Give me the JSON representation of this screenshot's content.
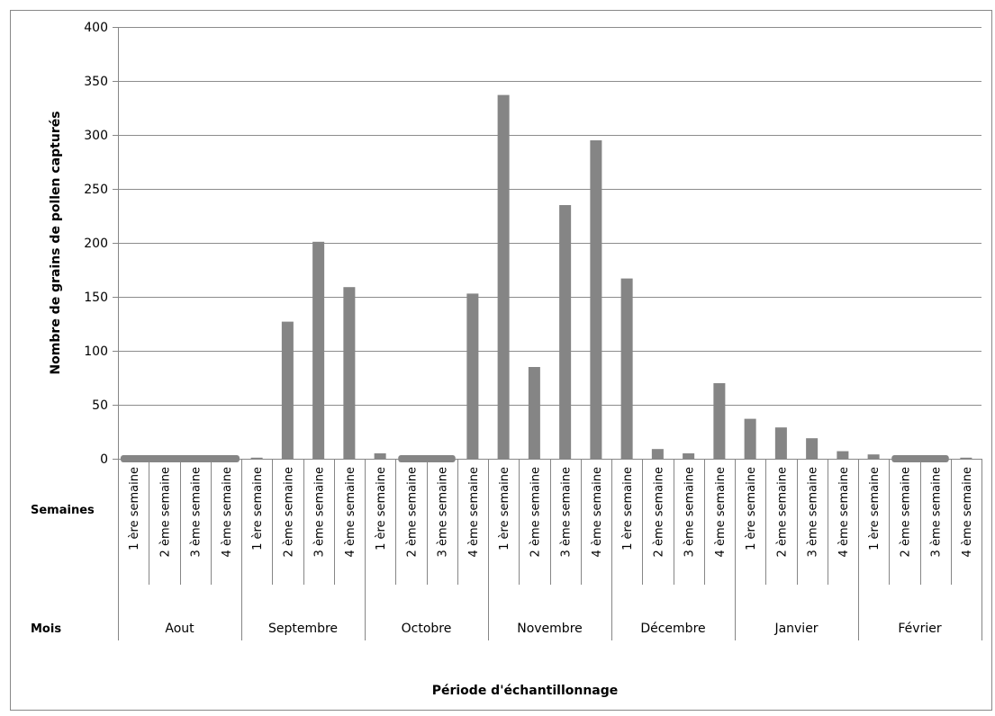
{
  "chart_data": {
    "type": "bar",
    "xlabel": "Période d'échantillonnage",
    "ylabel": "Nombre de grains de pollen capturés",
    "ylim": [
      0,
      400
    ],
    "yticks": [
      0,
      50,
      100,
      150,
      200,
      250,
      300,
      350,
      400
    ],
    "grid": true,
    "legend": "none",
    "row_labels": {
      "weeks": "Semaines",
      "months": "Mois"
    },
    "months": [
      "Aout",
      "Septembre",
      "Octobre",
      "Novembre",
      "Décembre",
      "Janvier",
      "Février"
    ],
    "week_labels": [
      "1 ère semaine",
      "2 ème semaine",
      "3 ème semaine",
      "4 ème semaine"
    ],
    "categories": [
      "Aout 1 ère semaine",
      "Aout 2 ème semaine",
      "Aout 3 ème semaine",
      "Aout 4 ème semaine",
      "Septembre 1 ère semaine",
      "Septembre 2 ème semaine",
      "Septembre 3 ème semaine",
      "Septembre 4 ème semaine",
      "Octobre 1 ère semaine",
      "Octobre 2 ème semaine",
      "Octobre 3 ème semaine",
      "Octobre 4 ème semaine",
      "Novembre 1 ère semaine",
      "Novembre 2 ème semaine",
      "Novembre 3 ème semaine",
      "Novembre 4 ème semaine",
      "Décembre 1 ère semaine",
      "Décembre 2 ème semaine",
      "Décembre 3 ème semaine",
      "Décembre 4 ème semaine",
      "Janvier 1 ère semaine",
      "Janvier 2 ème semaine",
      "Janvier 3 ème semaine",
      "Janvier 4 ème semaine",
      "Février 1 ère semaine",
      "Février 2 ème semaine",
      "Février 3 ème semaine",
      "Février 4 ème semaine"
    ],
    "values": [
      0,
      0,
      0,
      0,
      1,
      127,
      201,
      159,
      5,
      0,
      0,
      153,
      337,
      85,
      235,
      295,
      167,
      9,
      5,
      70,
      37,
      29,
      19,
      7,
      4,
      0,
      0,
      1
    ],
    "missing_markers": [
      [
        0,
        3
      ],
      [
        9,
        10
      ],
      [
        25,
        26
      ]
    ],
    "colors": {
      "bar": "#858585",
      "grid": "#8c8c8c",
      "axis": "#868686",
      "missing": "#858585"
    }
  }
}
